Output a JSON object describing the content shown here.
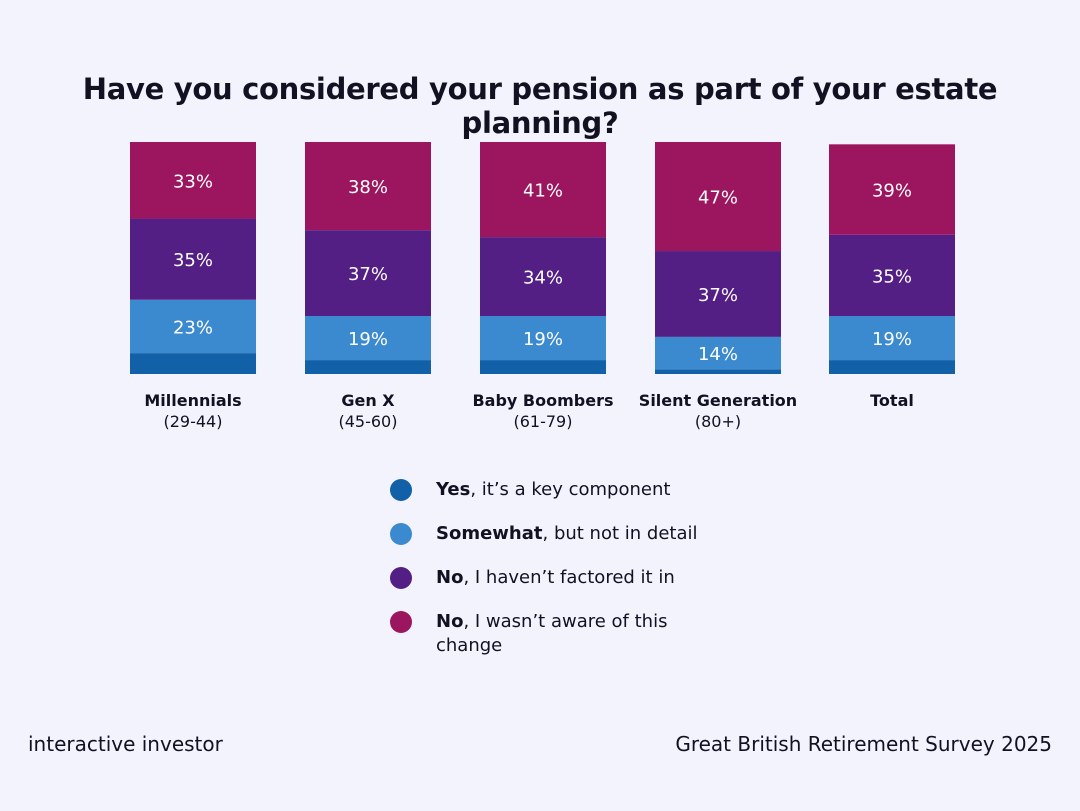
{
  "title": "Have you considered your pension as part of your estate planning?",
  "footer": {
    "brand": "interactive investor",
    "source": "Great British Retirement Survey 2025"
  },
  "chart_data": {
    "type": "bar",
    "stacked": true,
    "title": "Have you considered your pension as part of your estate planning?",
    "categories": [
      {
        "name": "Millennials",
        "sub": "(29-44)"
      },
      {
        "name": "Gen X",
        "sub": "(45-60)"
      },
      {
        "name": "Baby Boombers",
        "sub": "(61-79)"
      },
      {
        "name": "Silent Generation",
        "sub": "(80+)"
      },
      {
        "name": "Total",
        "sub": ""
      }
    ],
    "series": [
      {
        "key": "yes",
        "bold": "Yes",
        "rest": ", it’s a key component",
        "color": "#1260a8",
        "values": [
          9,
          6,
          6,
          2,
          6
        ]
      },
      {
        "key": "somewhat",
        "bold": "Somewhat",
        "rest": ", but not in detail",
        "color": "#3b8ad0",
        "values": [
          23,
          19,
          19,
          14,
          19
        ]
      },
      {
        "key": "no-not-factored",
        "bold": "No",
        "rest": ", I haven’t factored it in",
        "color": "#541f85",
        "values": [
          35,
          37,
          34,
          37,
          35
        ]
      },
      {
        "key": "no-not-aware",
        "bold": "No",
        "rest": ", I wasn’t aware of this change",
        "color": "#9c165f",
        "values": [
          33,
          38,
          41,
          47,
          39
        ]
      }
    ],
    "labels": [
      [
        null,
        "23%",
        "35%",
        "33%"
      ],
      [
        null,
        "19%",
        "37%",
        "38%"
      ],
      [
        null,
        "19%",
        "34%",
        "41%"
      ],
      [
        null,
        "14%",
        "37%",
        "47%"
      ],
      [
        null,
        "19%",
        "35%",
        "39%"
      ]
    ],
    "ylim": [
      0,
      100
    ],
    "legend_position": "bottom-center",
    "grid": false
  }
}
